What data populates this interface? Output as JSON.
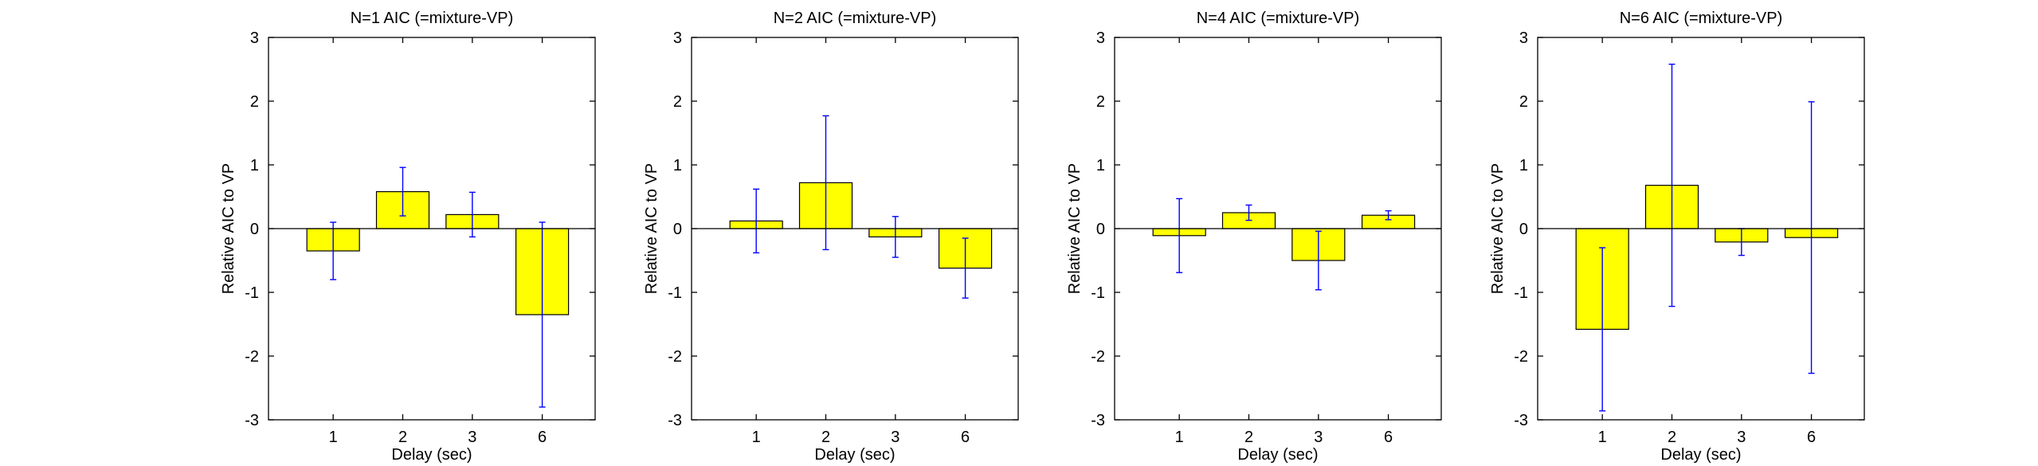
{
  "chart_data": [
    {
      "type": "bar",
      "title": "N=1 AIC (=mixture-VP)",
      "xlabel": "Delay (sec)",
      "ylabel": "Relative AIC to VP",
      "categories": [
        "1",
        "2",
        "3",
        "6"
      ],
      "values": [
        -0.35,
        0.58,
        0.22,
        -1.35
      ],
      "errors": [
        0.45,
        0.38,
        0.35,
        1.45
      ],
      "ylim": [
        -3,
        3
      ],
      "yticks": [
        -3,
        -2,
        -1,
        0,
        1,
        2,
        3
      ]
    },
    {
      "type": "bar",
      "title": "N=2 AIC (=mixture-VP)",
      "xlabel": "Delay (sec)",
      "ylabel": "Relative AIC to VP",
      "categories": [
        "1",
        "2",
        "3",
        "6"
      ],
      "values": [
        0.12,
        0.72,
        -0.13,
        -0.62
      ],
      "errors": [
        0.5,
        1.05,
        0.32,
        0.47
      ],
      "ylim": [
        -3,
        3
      ],
      "yticks": [
        -3,
        -2,
        -1,
        0,
        1,
        2,
        3
      ]
    },
    {
      "type": "bar",
      "title": "N=4 AIC (=mixture-VP)",
      "xlabel": "Delay (sec)",
      "ylabel": "Relative AIC to VP",
      "categories": [
        "1",
        "2",
        "3",
        "6"
      ],
      "values": [
        -0.11,
        0.25,
        -0.5,
        0.21
      ],
      "errors": [
        0.58,
        0.12,
        0.46,
        0.07
      ],
      "ylim": [
        -3,
        3
      ],
      "yticks": [
        -3,
        -2,
        -1,
        0,
        1,
        2,
        3
      ]
    },
    {
      "type": "bar",
      "title": "N=6 AIC (=mixture-VP)",
      "xlabel": "Delay (sec)",
      "ylabel": "Relative AIC to VP",
      "categories": [
        "1",
        "2",
        "3",
        "6"
      ],
      "values": [
        -1.58,
        0.68,
        -0.21,
        -0.14
      ],
      "errors": [
        1.28,
        1.9,
        0.21,
        2.13
      ],
      "ylim": [
        -3,
        3
      ],
      "yticks": [
        -3,
        -2,
        -1,
        0,
        1,
        2,
        3
      ]
    }
  ],
  "colors": {
    "bar_fill": "#ffff00",
    "bar_edge": "#000000",
    "error_bar": "#0000ff",
    "axes": "#000000",
    "background": "#ffffff"
  }
}
